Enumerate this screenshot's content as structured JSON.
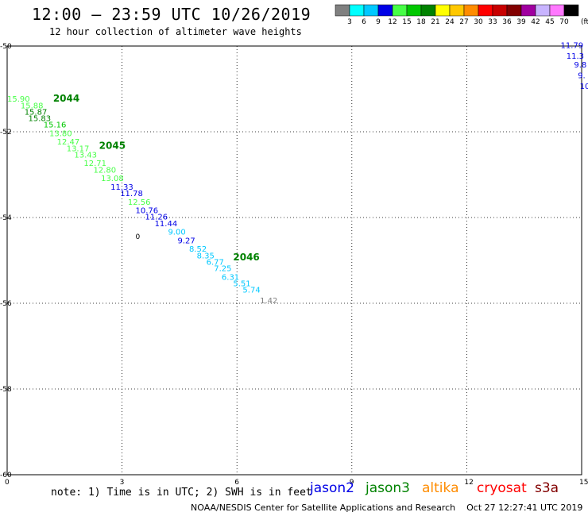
{
  "header": {
    "title": "12:00 — 23:59 UTC 10/26/2019",
    "subtitle": "12 hour collection of altimeter wave heights"
  },
  "legend": {
    "colors": [
      "#808080",
      "#00ffff",
      "#00c8ff",
      "#0000e6",
      "#46ff46",
      "#00c800",
      "#008200",
      "#ffff00",
      "#ffc800",
      "#ff8c00",
      "#ff0000",
      "#c80000",
      "#820000",
      "#a000a0",
      "#c8b4ff",
      "#ff78ff",
      "#000000"
    ],
    "labels": [
      "3",
      "6",
      "9",
      "12",
      "15",
      "18",
      "21",
      "24",
      "27",
      "30",
      "33",
      "36",
      "39",
      "42",
      "45",
      "70"
    ],
    "unit": "(ft)"
  },
  "map": {
    "y_ticks": [
      "-50",
      "-52",
      "-54",
      "-56",
      "-58",
      "-60"
    ],
    "x_ticks": [
      "0",
      "3",
      "6",
      "9",
      "12",
      "15"
    ],
    "lat_range": [
      -60,
      -50
    ],
    "lon_range": [
      0,
      15
    ],
    "tracks": [
      {
        "label": "2044",
        "lon": 1.2,
        "lat": -51.3,
        "color": "#008200"
      },
      {
        "label": "2045",
        "lon": 2.4,
        "lat": -52.4,
        "color": "#008200"
      },
      {
        "label": "2046",
        "lon": 5.9,
        "lat": -55.0,
        "color": "#008200"
      }
    ],
    "observations": [
      {
        "text": "15.90",
        "lon": 0.0,
        "lat": -51.3,
        "color": "#46ff46"
      },
      {
        "text": "15.88",
        "lon": 0.35,
        "lat": -51.45,
        "color": "#46ff46"
      },
      {
        "text": "15.87",
        "lon": 0.45,
        "lat": -51.6,
        "color": "#008200"
      },
      {
        "text": "15.83",
        "lon": 0.55,
        "lat": -51.75,
        "color": "#008200"
      },
      {
        "text": "15.16",
        "lon": 0.95,
        "lat": -51.9,
        "color": "#00c800"
      },
      {
        "text": "13.80",
        "lon": 1.1,
        "lat": -52.1,
        "color": "#46ff46"
      },
      {
        "text": "12.47",
        "lon": 1.3,
        "lat": -52.3,
        "color": "#46ff46"
      },
      {
        "text": "13.17",
        "lon": 1.55,
        "lat": -52.45,
        "color": "#46ff46"
      },
      {
        "text": "13.43",
        "lon": 1.75,
        "lat": -52.6,
        "color": "#46ff46"
      },
      {
        "text": "12.71",
        "lon": 2.0,
        "lat": -52.8,
        "color": "#46ff46"
      },
      {
        "text": "12.80",
        "lon": 2.25,
        "lat": -52.95,
        "color": "#46ff46"
      },
      {
        "text": "13.08",
        "lon": 2.45,
        "lat": -53.15,
        "color": "#46ff46"
      },
      {
        "text": "11.33",
        "lon": 2.7,
        "lat": -53.35,
        "color": "#0000e6"
      },
      {
        "text": "11.78",
        "lon": 2.95,
        "lat": -53.5,
        "color": "#0000e6"
      },
      {
        "text": "12.56",
        "lon": 3.15,
        "lat": -53.7,
        "color": "#46ff46"
      },
      {
        "text": "10.76",
        "lon": 3.35,
        "lat": -53.9,
        "color": "#0000e6"
      },
      {
        "text": "11.26",
        "lon": 3.6,
        "lat": -54.05,
        "color": "#0000e6"
      },
      {
        "text": "11.44",
        "lon": 3.85,
        "lat": -54.2,
        "color": "#0000e6"
      },
      {
        "text": "9.00",
        "lon": 4.2,
        "lat": -54.4,
        "color": "#00c8ff"
      },
      {
        "text": "9.27",
        "lon": 4.45,
        "lat": -54.6,
        "color": "#0000e6"
      },
      {
        "text": "8.52",
        "lon": 4.75,
        "lat": -54.8,
        "color": "#00c8ff"
      },
      {
        "text": "8.35",
        "lon": 4.95,
        "lat": -54.95,
        "color": "#00c8ff"
      },
      {
        "text": "6.77",
        "lon": 5.2,
        "lat": -55.1,
        "color": "#00c8ff"
      },
      {
        "text": "7.25",
        "lon": 5.4,
        "lat": -55.25,
        "color": "#00c8ff"
      },
      {
        "text": "6.31",
        "lon": 5.6,
        "lat": -55.45,
        "color": "#00c8ff"
      },
      {
        "text": "5.51",
        "lon": 5.9,
        "lat": -55.6,
        "color": "#00c8ff"
      },
      {
        "text": "5.74",
        "lon": 6.15,
        "lat": -55.75,
        "color": "#00c8ff"
      },
      {
        "text": "1.42",
        "lon": 6.6,
        "lat": -56.0,
        "color": "#808080"
      },
      {
        "text": "11.79",
        "lon": 14.45,
        "lat": -50.05,
        "color": "#0000e6"
      },
      {
        "text": "11.3",
        "lon": 14.6,
        "lat": -50.3,
        "color": "#0000e6"
      },
      {
        "text": "9.8",
        "lon": 14.8,
        "lat": -50.5,
        "color": "#0000e6"
      },
      {
        "text": "9.",
        "lon": 14.9,
        "lat": -50.75,
        "color": "#0000e6"
      },
      {
        "text": "10",
        "lon": 14.95,
        "lat": -51.0,
        "color": "#0000e6"
      }
    ],
    "islands": [
      {
        "text": "0",
        "lon": 3.35,
        "lat": -54.5
      }
    ]
  },
  "note": "note: 1) Time is in UTC; 2) SWH is in feet",
  "satellites": [
    {
      "label": "jason2",
      "color": "#0000e6"
    },
    {
      "label": "jason3",
      "color": "#008200"
    },
    {
      "label": "altika",
      "color": "#ff8c00"
    },
    {
      "label": "cryosat",
      "color": "#ff0000"
    },
    {
      "label": "s3a",
      "color": "#820000"
    }
  ],
  "footer": "NOAA/NESDIS Center for Satellite Applications and Research    Oct 27 12:27:41 UTC 2019"
}
